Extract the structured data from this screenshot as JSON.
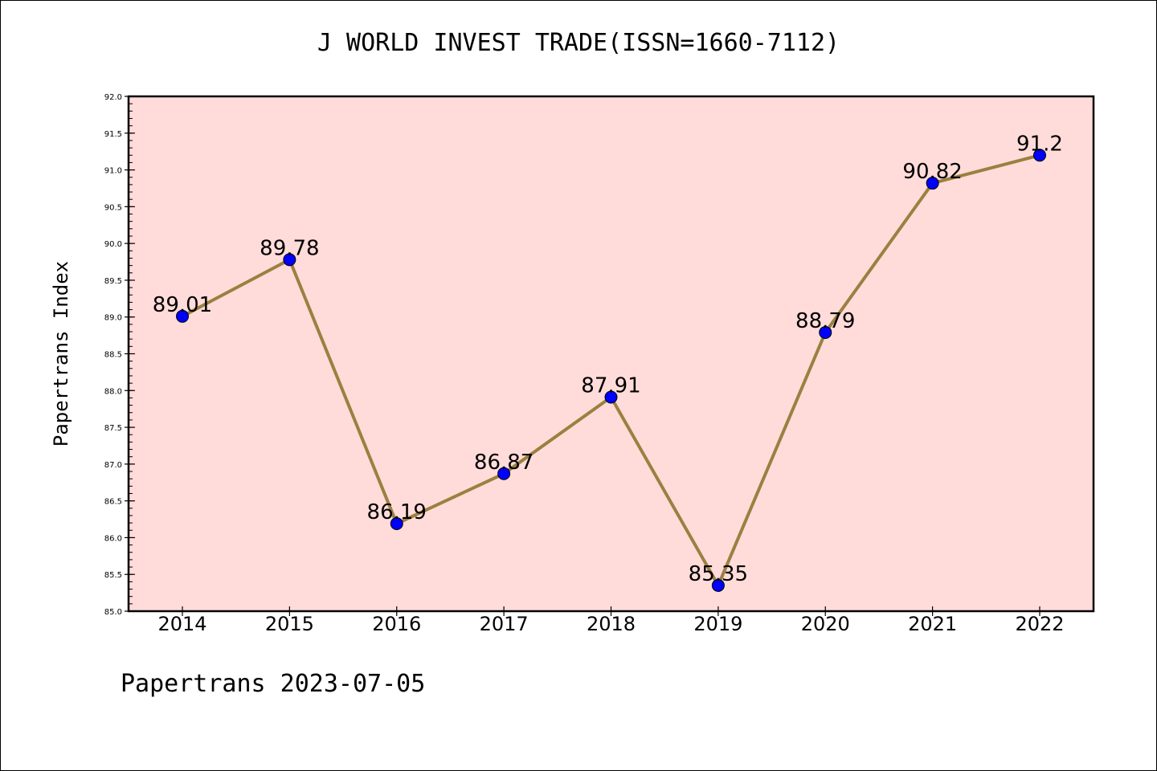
{
  "chart_data": {
    "type": "line",
    "title": "J WORLD INVEST TRADE(ISSN=1660-7112)",
    "xlabel": "",
    "ylabel": "Papertrans Index",
    "footer": "Papertrans 2023-07-05",
    "categories": [
      "2014",
      "2015",
      "2016",
      "2017",
      "2018",
      "2019",
      "2020",
      "2021",
      "2022"
    ],
    "series": [
      {
        "values": [
          89.01,
          89.78,
          86.19,
          86.87,
          87.91,
          85.35,
          88.79,
          90.82,
          91.2
        ],
        "labels": [
          "89.01",
          "89.78",
          "86.19",
          "86.87",
          "87.91",
          "85.35",
          "88.79",
          "90.82",
          "91.2"
        ],
        "line_color": "#9b8040",
        "marker_color": "#0000ff"
      }
    ],
    "ylim": [
      85.0,
      92.0
    ],
    "yticks": [
      "85.0",
      "85.5",
      "86.0",
      "86.5",
      "87.0",
      "87.5",
      "88.0",
      "88.5",
      "89.0",
      "89.5",
      "90.0",
      "90.5",
      "91.0",
      "91.5",
      "92.0"
    ],
    "plot_background": "#ffdcda",
    "grid": false,
    "legend": "none"
  }
}
